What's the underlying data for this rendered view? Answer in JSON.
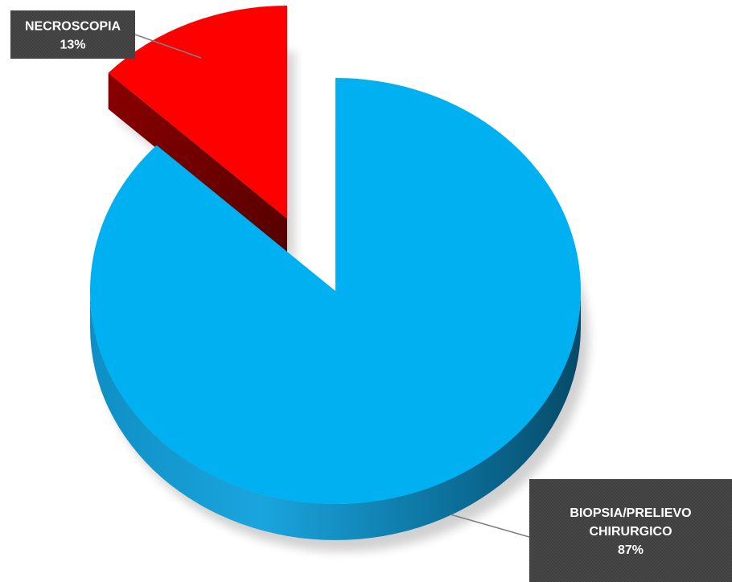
{
  "chart_data": {
    "type": "pie",
    "title": "",
    "slices": [
      {
        "label_lines": [
          "BIOPSIA/PRELIEVO",
          "CHIRURGICO"
        ],
        "value": 87,
        "value_label": "87%",
        "color": "#00b0f0",
        "side_color": "#0a6f99",
        "exploded": false
      },
      {
        "label_lines": [
          "NECROSCOPIA"
        ],
        "value": 13,
        "value_label": "13%",
        "color": "#ff0000",
        "side_color": "#7a0000",
        "exploded": true
      }
    ],
    "legend": "none",
    "style": "3d-exploded-pie",
    "label_box_color": "#404040"
  }
}
